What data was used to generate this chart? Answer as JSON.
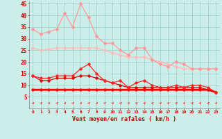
{
  "x": [
    0,
    1,
    2,
    3,
    4,
    5,
    6,
    7,
    8,
    9,
    10,
    11,
    12,
    13,
    14,
    15,
    16,
    17,
    18,
    19,
    20,
    21,
    22,
    23
  ],
  "line1": [
    34,
    32,
    33,
    34,
    41,
    35,
    45,
    39,
    31,
    28,
    28,
    25,
    23,
    26,
    26,
    21,
    19,
    18,
    20,
    19,
    17,
    17,
    17,
    17
  ],
  "line2": [
    26,
    25,
    25.5,
    26,
    26,
    26,
    26,
    26,
    26,
    25,
    24,
    23,
    22,
    22,
    22,
    21,
    20,
    19,
    18,
    17,
    17,
    17,
    17,
    17
  ],
  "line3": [
    14,
    13,
    13,
    14,
    14,
    14,
    17,
    19,
    15,
    12,
    11,
    12,
    9,
    11,
    12,
    10,
    9,
    9,
    10,
    9,
    10,
    10,
    9,
    7
  ],
  "line4": [
    14,
    12,
    12,
    13,
    13,
    13,
    14,
    14,
    13,
    12,
    11,
    10,
    9,
    9,
    9,
    9,
    9,
    9,
    9,
    9,
    9,
    9,
    8,
    7
  ],
  "line5": [
    8,
    8,
    8,
    8,
    8,
    8,
    8,
    8,
    8,
    8,
    8,
    8,
    8,
    8,
    8,
    8,
    8,
    8,
    8,
    8,
    8,
    8,
    8,
    7
  ],
  "line1_color": "#ff9999",
  "line2_color": "#ffbbbb",
  "line3_color": "#ff2222",
  "line4_color": "#dd0000",
  "line5_color": "#ff0000",
  "bg_color": "#cceee8",
  "grid_color": "#99cccc",
  "xlabel": "Vent moyen/en rafales ( km/h )",
  "ylim": [
    0,
    46
  ],
  "yticks": [
    5,
    10,
    15,
    20,
    25,
    30,
    35,
    40,
    45
  ],
  "xticks": [
    0,
    1,
    2,
    3,
    4,
    5,
    6,
    7,
    8,
    9,
    10,
    11,
    12,
    13,
    14,
    15,
    16,
    17,
    18,
    19,
    20,
    21,
    22,
    23
  ],
  "arrow_color": "#ff4444"
}
